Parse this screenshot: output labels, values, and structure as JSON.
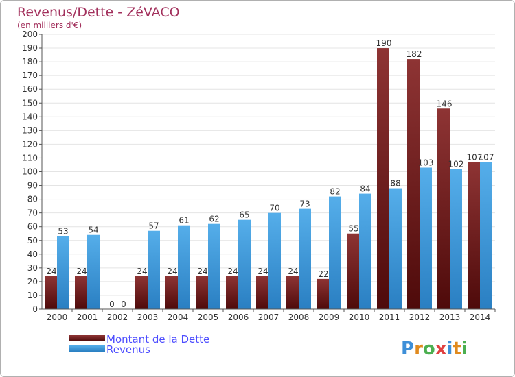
{
  "chart_data": {
    "type": "bar",
    "title": "Revenus/Dette - ZéVACO",
    "subtitle": "(en milliers d'€)",
    "categories": [
      "2000",
      "2001",
      "2002",
      "2003",
      "2004",
      "2005",
      "2006",
      "2007",
      "2008",
      "2009",
      "2010",
      "2011",
      "2012",
      "2013",
      "2014"
    ],
    "series": [
      {
        "name": "Montant de la Dette",
        "color": "#7a1d1d",
        "values": [
          24,
          24,
          0,
          24,
          24,
          24,
          24,
          24,
          24,
          22,
          55,
          190,
          182,
          146,
          107
        ]
      },
      {
        "name": "Revenus",
        "color": "#3d9be0",
        "values": [
          53,
          54,
          0,
          57,
          61,
          62,
          65,
          70,
          73,
          82,
          84,
          88,
          103,
          102,
          107
        ]
      }
    ],
    "ylim": [
      0,
      200
    ],
    "ytick_step": 10,
    "grid": true,
    "legend": "bottom-left"
  },
  "logo": {
    "text": "Proxiti"
  }
}
